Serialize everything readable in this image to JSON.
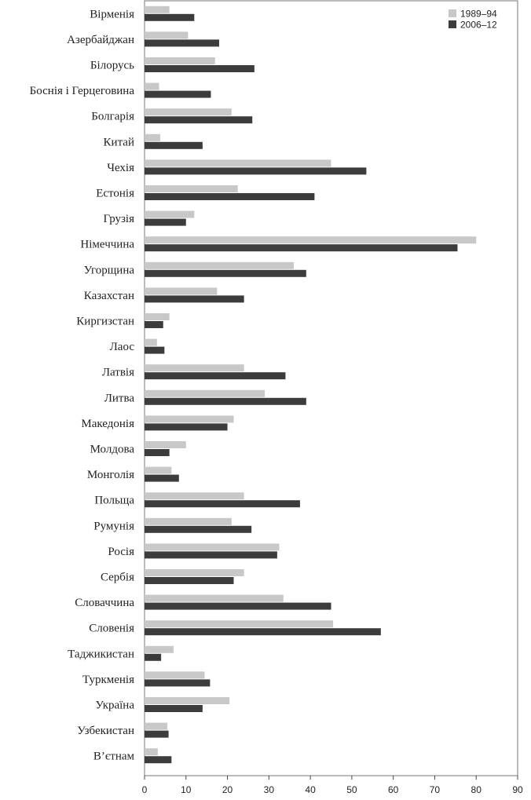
{
  "chart_data": {
    "type": "bar",
    "orientation": "horizontal",
    "title": "",
    "xlabel": "",
    "ylabel": "",
    "xlim": [
      0,
      90
    ],
    "xticks": [
      0,
      10,
      20,
      30,
      40,
      50,
      60,
      70,
      80,
      90
    ],
    "grid": false,
    "legend_position": "top-right",
    "categories": [
      "Вірменія",
      "Азербайджан",
      "Білорусь",
      "Боснія і Герцеговина",
      "Болгарія",
      "Китай",
      "Чехія",
      "Естонія",
      "Грузія",
      "Німеччина",
      "Угорщина",
      "Казахстан",
      "Киргизстан",
      "Лаос",
      "Латвія",
      "Литва",
      "Македонія",
      "Молдова",
      "Монголія",
      "Польща",
      "Румунія",
      "Росія",
      "Сербія",
      "Словаччина",
      "Словенія",
      "Таджикистан",
      "Туркменія",
      "Україна",
      "Узбекистан",
      "В’єтнам"
    ],
    "series": [
      {
        "name": "1989–94",
        "color": "#c8c8c8",
        "values": [
          6,
          10.5,
          17,
          3.5,
          21,
          3.8,
          45,
          22.5,
          12,
          80,
          36,
          17.5,
          6,
          3,
          24,
          29,
          21.5,
          10,
          6.5,
          24,
          21,
          32.5,
          24,
          33.5,
          45.5,
          7,
          14.5,
          20.5,
          5.5,
          3.2
        ]
      },
      {
        "name": "2006–12",
        "color": "#3c3c3c",
        "values": [
          12,
          18,
          26.5,
          16,
          26,
          14,
          53.5,
          41,
          10,
          75.5,
          39,
          24,
          4.5,
          4.8,
          34,
          39,
          20,
          6,
          8.3,
          37.5,
          25.8,
          32,
          21.5,
          45,
          57,
          4,
          15.8,
          14,
          5.8,
          6.5
        ]
      }
    ]
  }
}
